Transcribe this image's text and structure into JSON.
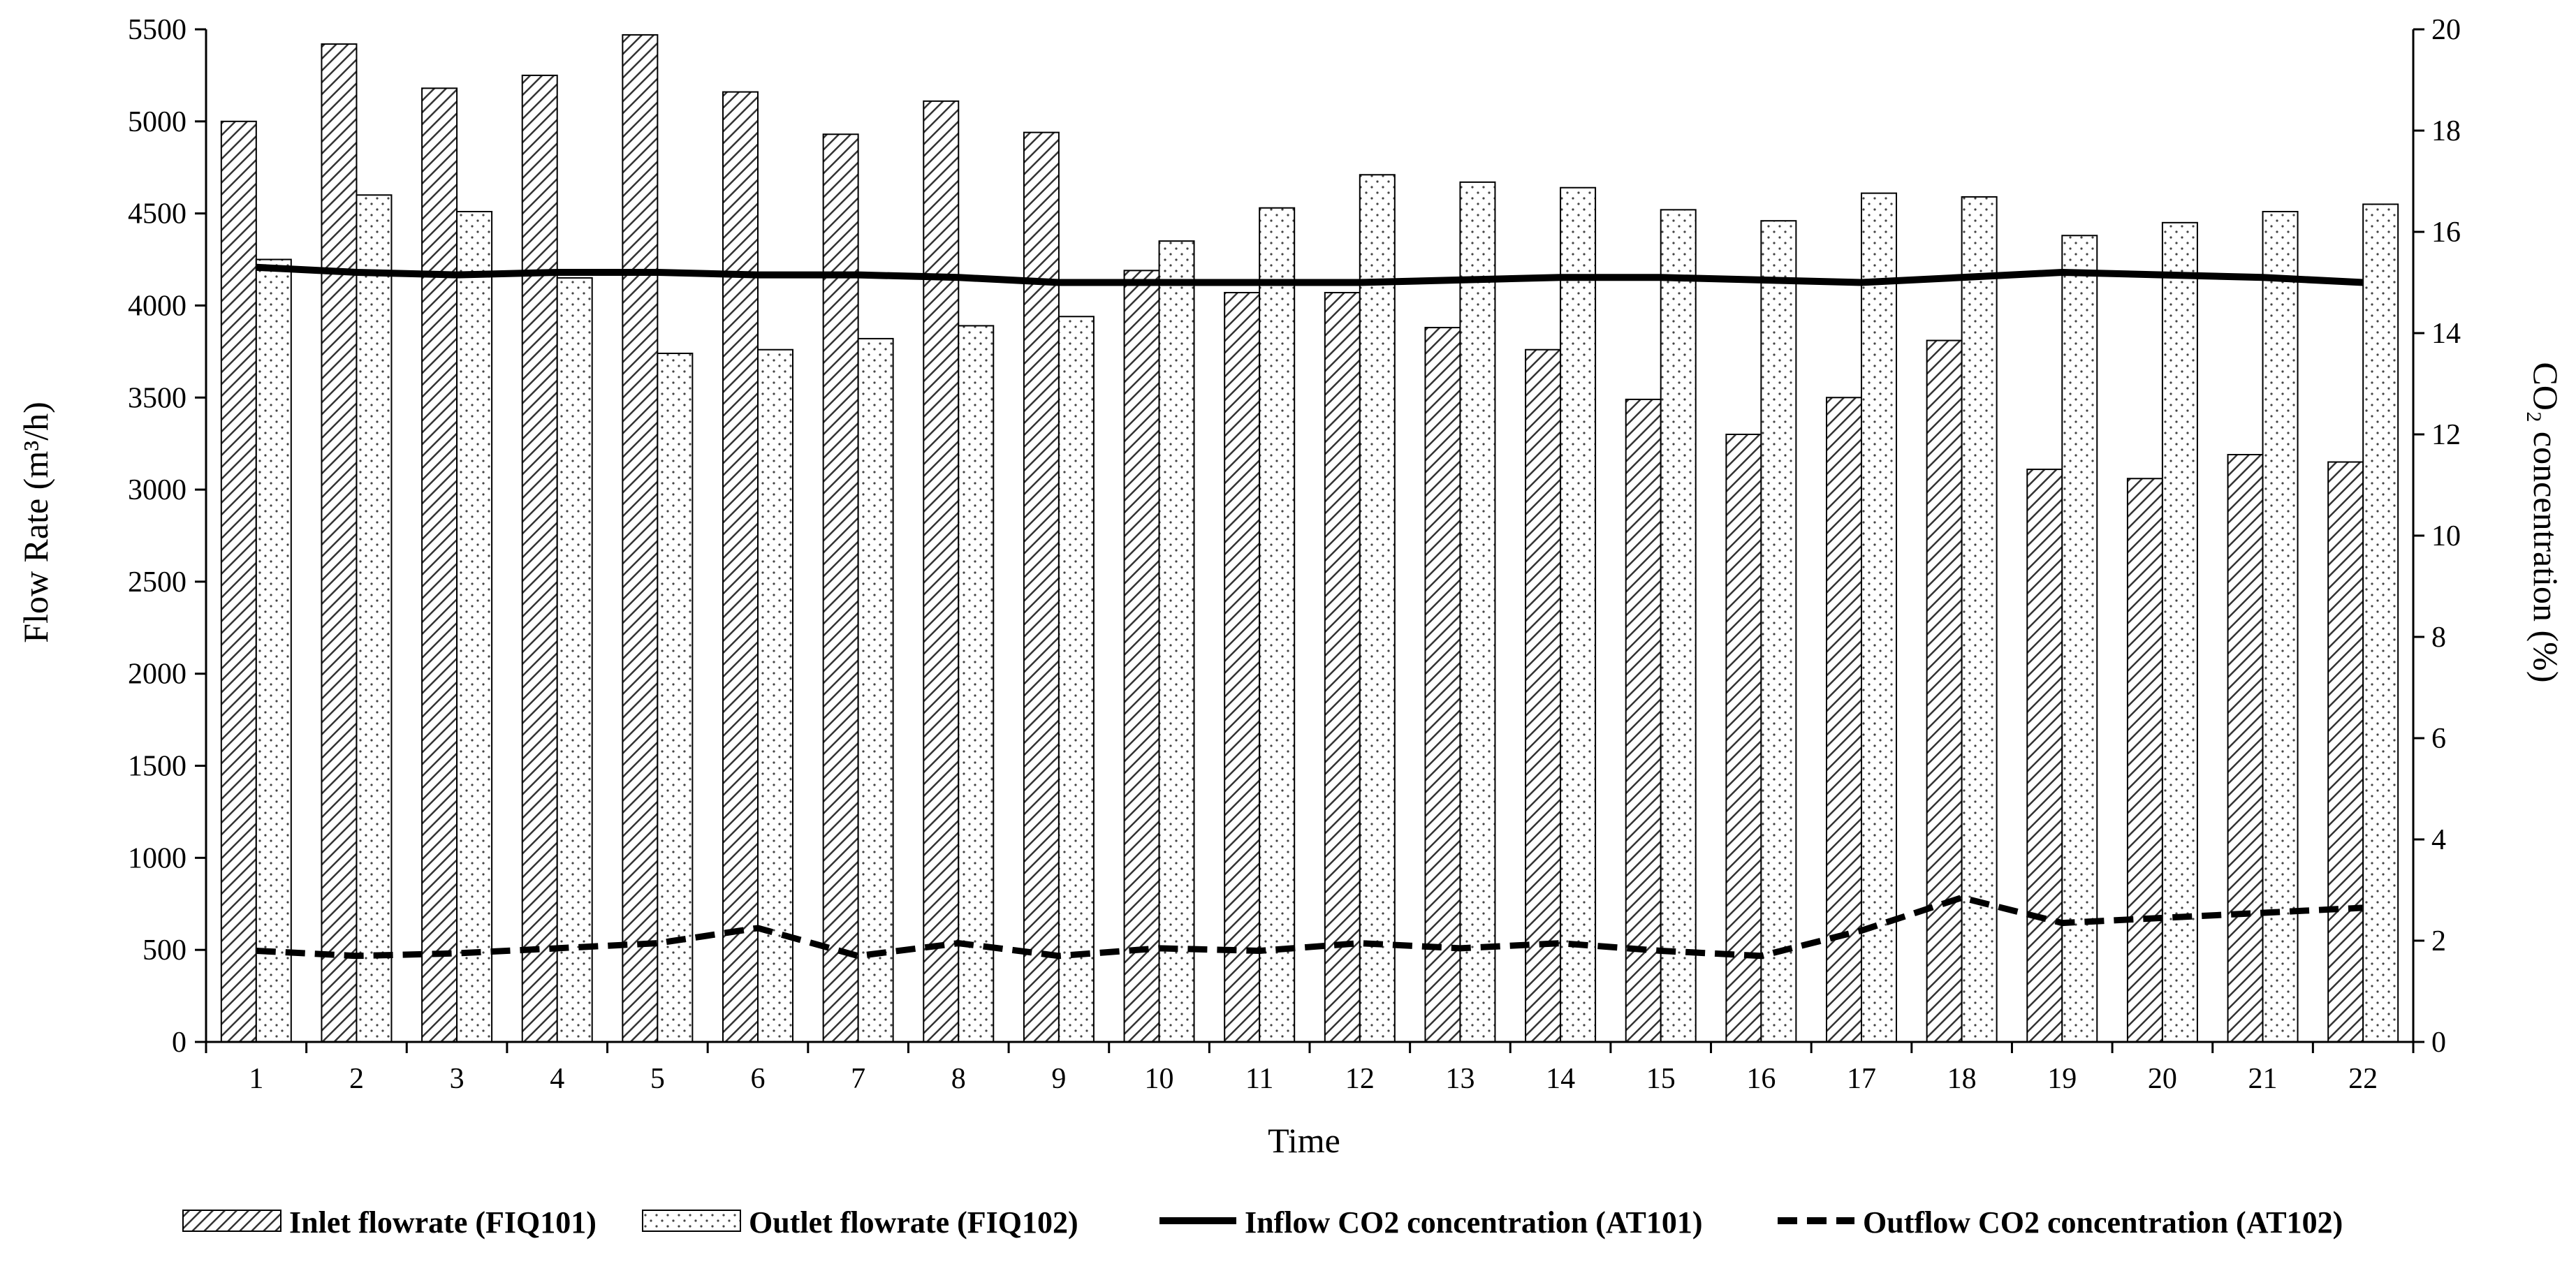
{
  "chart_data": {
    "type": "bar",
    "categories": [
      "1",
      "2",
      "3",
      "4",
      "5",
      "6",
      "7",
      "8",
      "9",
      "10",
      "11",
      "12",
      "13",
      "14",
      "15",
      "16",
      "17",
      "18",
      "19",
      "20",
      "21",
      "22"
    ],
    "xlabel": "Time",
    "ylabel_left": "Flow Rate (m³/h)",
    "ylabel_right": "CO₂ concentration (%)",
    "ylim_left": [
      0,
      5500
    ],
    "ylim_right": [
      0,
      20
    ],
    "yticks_left": [
      "0",
      "500",
      "1000",
      "1500",
      "2000",
      "2500",
      "3000",
      "3500",
      "4000",
      "4500",
      "5000",
      "5500"
    ],
    "yticks_right": [
      "0",
      "2",
      "4",
      "6",
      "8",
      "10",
      "12",
      "14",
      "16",
      "18",
      "20"
    ],
    "grid": false,
    "legend_position": "bottom",
    "series": [
      {
        "name": "Inlet flowrate (FIQ101)",
        "kind": "bar",
        "axis": "left",
        "pattern": "diagonal-hatch",
        "values": [
          5000,
          5420,
          5180,
          5250,
          5470,
          5160,
          4930,
          5110,
          4940,
          4190,
          4070,
          4070,
          3880,
          3760,
          3490,
          3300,
          3500,
          3810,
          3110,
          3060,
          3190,
          3150
        ]
      },
      {
        "name": "Outlet flowrate (FIQ102)",
        "kind": "bar",
        "axis": "left",
        "pattern": "dotted",
        "values": [
          4250,
          4600,
          4510,
          4150,
          3740,
          3760,
          3820,
          3890,
          3940,
          4350,
          4530,
          4710,
          4670,
          4640,
          4520,
          4460,
          4610,
          4590,
          4380,
          4450,
          4510,
          4550
        ]
      },
      {
        "name": "Inflow CO2 concentration (AT101)",
        "kind": "line",
        "axis": "right",
        "style": "solid",
        "values": [
          15.3,
          15.2,
          15.15,
          15.2,
          15.2,
          15.15,
          15.15,
          15.1,
          15.0,
          15.0,
          15.0,
          15.0,
          15.05,
          15.1,
          15.1,
          15.05,
          15.0,
          15.1,
          15.2,
          15.15,
          15.1,
          15.0
        ]
      },
      {
        "name": "Outflow CO2 concentration (AT102)",
        "kind": "line",
        "axis": "right",
        "style": "dashed",
        "values": [
          1.8,
          1.7,
          1.75,
          1.85,
          1.95,
          2.25,
          1.7,
          1.95,
          1.7,
          1.85,
          1.8,
          1.95,
          1.85,
          1.95,
          1.8,
          1.7,
          2.2,
          2.85,
          2.35,
          2.45,
          2.55,
          2.65
        ]
      }
    ]
  }
}
